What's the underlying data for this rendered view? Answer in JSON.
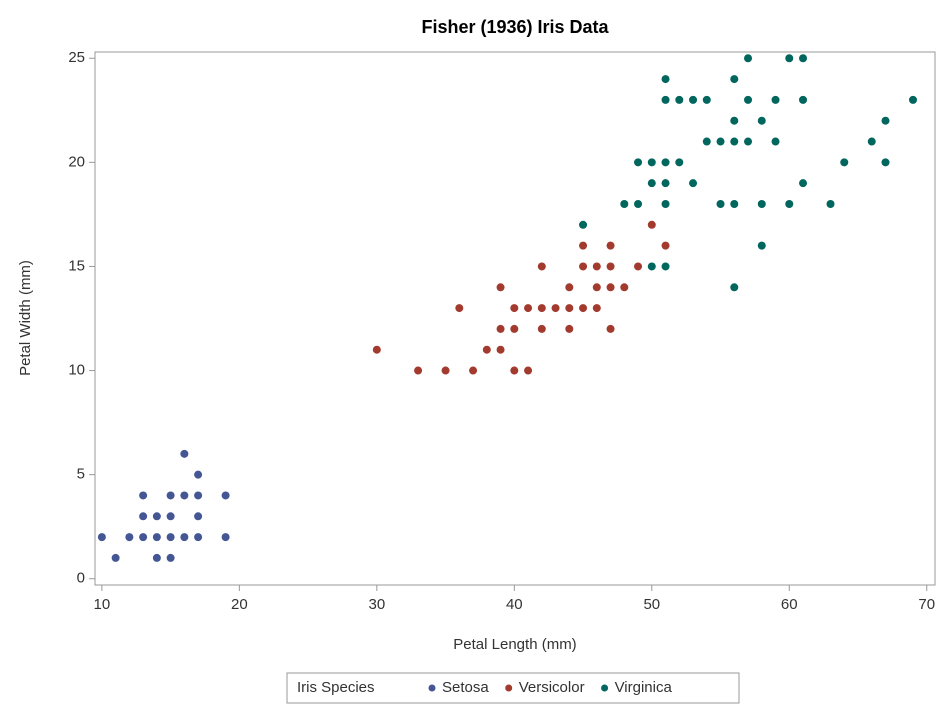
{
  "chart_data": {
    "type": "scatter",
    "title": "Fisher (1936) Iris Data",
    "x_label": "Petal Length (mm)",
    "y_label": "Petal Width (mm)",
    "xlim": [
      9.5,
      70.6
    ],
    "ylim": [
      -0.3,
      25.3
    ],
    "xticks": [
      10,
      20,
      30,
      40,
      50,
      60,
      70
    ],
    "yticks": [
      0,
      5,
      10,
      15,
      20,
      25
    ],
    "legend_title": "Iris Species",
    "legend_position": "bottom",
    "series": [
      {
        "name": "Setosa",
        "color": "#445694",
        "x": [
          10,
          11,
          12,
          13,
          13,
          13,
          14,
          14,
          14,
          15,
          15,
          15,
          15,
          16,
          16,
          16,
          17,
          17,
          17,
          17,
          19,
          19
        ],
        "y": [
          2,
          1,
          2,
          2,
          3,
          4,
          1,
          2,
          3,
          1,
          2,
          3,
          4,
          2,
          4,
          6,
          2,
          3,
          4,
          5,
          2,
          4
        ]
      },
      {
        "name": "Versicolor",
        "color": "#a23a2e",
        "x": [
          30,
          33,
          35,
          36,
          37,
          38,
          39,
          39,
          39,
          40,
          40,
          40,
          41,
          41,
          42,
          42,
          42,
          43,
          44,
          44,
          44,
          45,
          45,
          45,
          46,
          46,
          46,
          47,
          47,
          47,
          47,
          48,
          49,
          50,
          51
        ],
        "y": [
          11,
          10,
          10,
          13,
          10,
          11,
          11,
          12,
          14,
          10,
          12,
          13,
          10,
          13,
          12,
          13,
          15,
          13,
          12,
          13,
          14,
          13,
          15,
          16,
          13,
          14,
          15,
          12,
          14,
          15,
          16,
          14,
          15,
          17,
          16
        ]
      },
      {
        "name": "Virginica",
        "color": "#01665e",
        "x": [
          45,
          48,
          49,
          49,
          50,
          50,
          50,
          51,
          51,
          51,
          51,
          51,
          51,
          52,
          52,
          53,
          53,
          54,
          54,
          55,
          55,
          56,
          56,
          56,
          56,
          56,
          57,
          57,
          57,
          58,
          58,
          58,
          59,
          59,
          60,
          60,
          61,
          61,
          61,
          63,
          64,
          66,
          67,
          67,
          69
        ],
        "y": [
          17,
          18,
          18,
          20,
          15,
          19,
          20,
          15,
          18,
          19,
          20,
          23,
          24,
          20,
          23,
          19,
          23,
          21,
          23,
          18,
          21,
          14,
          18,
          21,
          22,
          24,
          21,
          23,
          25,
          16,
          18,
          22,
          21,
          23,
          18,
          25,
          19,
          23,
          25,
          18,
          20,
          21,
          20,
          22,
          23
        ]
      }
    ]
  }
}
